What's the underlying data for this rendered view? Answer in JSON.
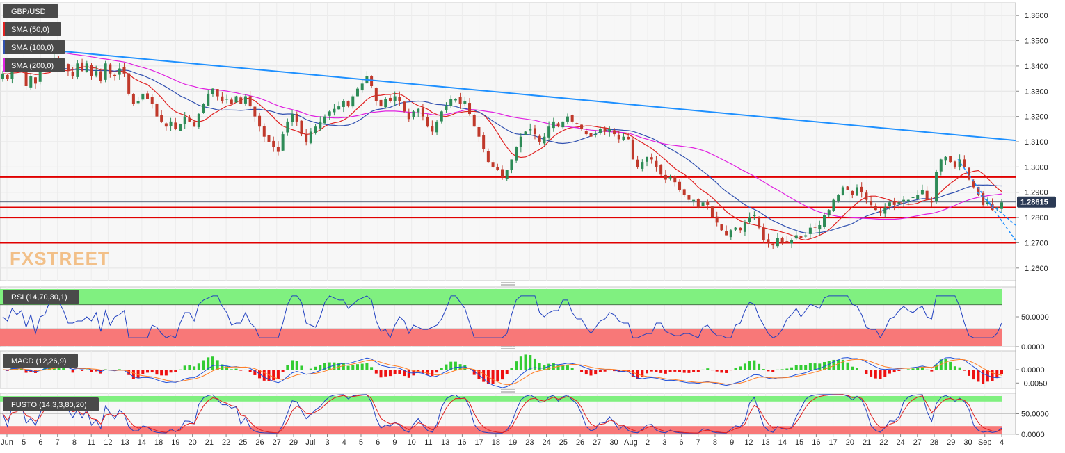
{
  "chart_data": {
    "type": "candlestick",
    "symbol": "GBP/USD",
    "main": {
      "ylim": [
        1.255,
        1.365
      ],
      "y_ticks": [
        "1.3600",
        "1.3500",
        "1.3400",
        "1.3300",
        "1.3200",
        "1.3100",
        "1.3000",
        "1.2900",
        "1.2800",
        "1.2700",
        "1.2600"
      ],
      "current_price_label": "1.28615",
      "current_price": 1.28615,
      "horizontal_levels": [
        1.296,
        1.284,
        1.28,
        1.27
      ],
      "trendline": {
        "from": [
          0,
          1.348
        ],
        "to": [
          1,
          1.3105
        ]
      },
      "channel_lines": [
        {
          "from": [
            0.943,
            1.303
          ],
          "to": [
            1,
            1.271
          ]
        },
        {
          "from": [
            0.962,
            1.29
          ],
          "to": [
            1,
            1.277
          ]
        }
      ],
      "closes": [
        1.337,
        1.335,
        1.341,
        1.338,
        1.34,
        1.332,
        1.336,
        1.333,
        1.338,
        1.341,
        1.339,
        1.343,
        1.34,
        1.341,
        1.338,
        1.336,
        1.341,
        1.338,
        1.341,
        1.336,
        1.338,
        1.334,
        1.341,
        1.337,
        1.336,
        1.339,
        1.337,
        1.329,
        1.325,
        1.326,
        1.329,
        1.327,
        1.325,
        1.32,
        1.318,
        1.316,
        1.318,
        1.315,
        1.317,
        1.32,
        1.318,
        1.316,
        1.321,
        1.325,
        1.329,
        1.331,
        1.328,
        1.326,
        1.327,
        1.325,
        1.328,
        1.325,
        1.328,
        1.324,
        1.32,
        1.316,
        1.312,
        1.31,
        1.308,
        1.306,
        1.313,
        1.318,
        1.321,
        1.318,
        1.313,
        1.31,
        1.314,
        1.316,
        1.318,
        1.32,
        1.322,
        1.323,
        1.324,
        1.326,
        1.324,
        1.328,
        1.331,
        1.333,
        1.336,
        1.332,
        1.326,
        1.324,
        1.327,
        1.326,
        1.328,
        1.326,
        1.322,
        1.319,
        1.322,
        1.323,
        1.32,
        1.316,
        1.314,
        1.318,
        1.322,
        1.324,
        1.327,
        1.327,
        1.325,
        1.326,
        1.321,
        1.316,
        1.312,
        1.307,
        1.302,
        1.3,
        1.299,
        1.296,
        1.299,
        1.303,
        1.308,
        1.312,
        1.314,
        1.315,
        1.313,
        1.31,
        1.312,
        1.316,
        1.318,
        1.316,
        1.318,
        1.32,
        1.318,
        1.317,
        1.315,
        1.313,
        1.312,
        1.313,
        1.315,
        1.314,
        1.315,
        1.313,
        1.311,
        1.312,
        1.311,
        1.303,
        1.3,
        1.302,
        1.304,
        1.303,
        1.3,
        1.297,
        1.295,
        1.296,
        1.294,
        1.291,
        1.289,
        1.287,
        1.287,
        1.284,
        1.286,
        1.285,
        1.28,
        1.278,
        1.275,
        1.273,
        1.275,
        1.276,
        1.275,
        1.278,
        1.28,
        1.281,
        1.276,
        1.271,
        1.27,
        1.269,
        1.272,
        1.27,
        1.27,
        1.271,
        1.273,
        1.272,
        1.273,
        1.276,
        1.276,
        1.277,
        1.281,
        1.283,
        1.287,
        1.289,
        1.292,
        1.291,
        1.289,
        1.292,
        1.29,
        1.287,
        1.285,
        1.283,
        1.282,
        1.284,
        1.286,
        1.285,
        1.286,
        1.287,
        1.287,
        1.288,
        1.289,
        1.291,
        1.287,
        1.286,
        1.298,
        1.303,
        1.304,
        1.302,
        1.3,
        1.303,
        1.3,
        1.295,
        1.292,
        1.289,
        1.285,
        1.286,
        1.283,
        1.284,
        1.286
      ]
    },
    "sma": [
      {
        "name": "SMA (50,0)",
        "color": "#e02020"
      },
      {
        "name": "SMA (100,0)",
        "color": "#3050b0"
      },
      {
        "name": "SMA (200,0)",
        "color": "#e020e0"
      }
    ],
    "rsi": {
      "label": "RSI (14,70,30,1)",
      "ylim": [
        0,
        100
      ],
      "overbought": 70,
      "oversold": 30,
      "ticks": [
        "50.0000",
        "0.0000"
      ]
    },
    "macd": {
      "label": "MACD (12,26,9)",
      "ylim": [
        -0.007,
        0.007
      ],
      "ticks": [
        "0.0000",
        "-0.0050"
      ]
    },
    "fusto": {
      "label": "FUSTO (14,3,3,80,20)",
      "ylim": [
        0,
        100
      ],
      "overbought": 80,
      "oversold": 20,
      "ticks": [
        "50.0000",
        "0.0000"
      ]
    },
    "x_ticks": [
      "Jun",
      "5",
      "6",
      "7",
      "8",
      "11",
      "12",
      "13",
      "14",
      "18",
      "19",
      "20",
      "21",
      "22",
      "25",
      "26",
      "27",
      "29",
      "Jul",
      "3",
      "4",
      "5",
      "6",
      "9",
      "10",
      "11",
      "13",
      "16",
      "17",
      "18",
      "19",
      "23",
      "24",
      "25",
      "26",
      "27",
      "30",
      "Aug",
      "2",
      "3",
      "6",
      "7",
      "8",
      "9",
      "12",
      "13",
      "14",
      "15",
      "16",
      "17",
      "20",
      "21",
      "22",
      "24",
      "27",
      "28",
      "29",
      "30",
      "Sep",
      "4"
    ],
    "watermark": "FXSTREET",
    "colors": {
      "up": "#2e8b57",
      "down": "#c0392b",
      "trendline": "#1e90ff",
      "level": "#e00000",
      "overbought_zone": "#80f080",
      "oversold_zone": "#f87878",
      "macd_line": "#1f4fd8",
      "macd_signal": "#ff7f27",
      "hist_pos": "#33cc33",
      "hist_neg": "#ee1111"
    }
  }
}
